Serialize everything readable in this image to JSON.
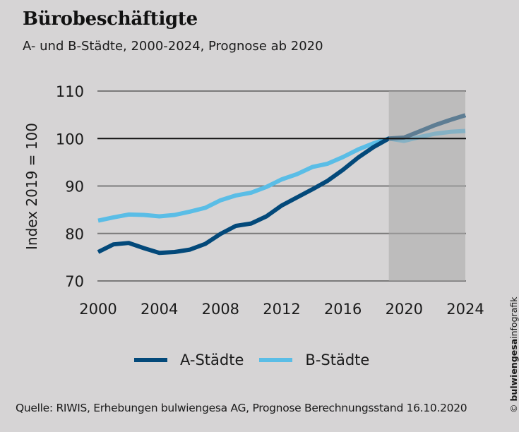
{
  "header": {
    "title": "Bürobeschäftigte",
    "subtitle": "A- und B-Städte, 2000-2024, Prognose ab 2020"
  },
  "footer": {
    "source": "Quelle: RIWIS, Erhebungen bulwiengesa AG, Prognose Berechnungsstand 16.10.2020",
    "credit_symbol": "©",
    "credit_brand": "bulwiengesa",
    "credit_suffix": "infografik"
  },
  "colors": {
    "background": "#d6d4d5",
    "forecast_shade": "#a9a7a8",
    "a_staedte": "#03497a",
    "b_staedte": "#5abde6",
    "gridline": "#7a7a7a",
    "baseline": "#111111"
  },
  "chart_data": {
    "type": "line",
    "title": "Bürobeschäftigte",
    "subtitle": "A- und B-Städte, 2000-2024, Prognose ab 2020",
    "xlabel": "",
    "ylabel": "Index 2019 = 100",
    "x": [
      2000,
      2001,
      2002,
      2003,
      2004,
      2005,
      2006,
      2007,
      2008,
      2009,
      2010,
      2011,
      2012,
      2013,
      2014,
      2015,
      2016,
      2017,
      2018,
      2019,
      2020,
      2021,
      2022,
      2023,
      2024
    ],
    "xlim": [
      2000,
      2024
    ],
    "ylim": [
      70,
      110
    ],
    "xticks": [
      2000,
      2004,
      2008,
      2012,
      2016,
      2020,
      2024
    ],
    "yticks": [
      70,
      80,
      90,
      100,
      110
    ],
    "grid": true,
    "reference_line": 100,
    "forecast_region": {
      "from": 2019,
      "to": 2024,
      "label": "Prognose ab 2020"
    },
    "legend": {
      "placement": "bottom",
      "entries": [
        "A-Städte",
        "B-Städte"
      ]
    },
    "series": [
      {
        "name": "A-Städte",
        "color": "#03497a",
        "values": [
          76.1,
          77.7,
          78.0,
          76.9,
          75.9,
          76.1,
          76.6,
          77.8,
          79.9,
          81.6,
          82.1,
          83.6,
          85.9,
          87.6,
          89.3,
          91.1,
          93.4,
          96.0,
          98.2,
          100.0,
          100.2,
          101.5,
          102.8,
          103.9,
          104.9
        ]
      },
      {
        "name": "B-Städte",
        "color": "#5abde6",
        "values": [
          82.7,
          83.4,
          84.0,
          83.9,
          83.6,
          83.9,
          84.6,
          85.4,
          87.0,
          88.0,
          88.6,
          89.8,
          91.4,
          92.5,
          94.0,
          94.7,
          96.1,
          97.7,
          99.0,
          100.0,
          99.5,
          100.3,
          101.0,
          101.4,
          101.6
        ]
      }
    ]
  }
}
